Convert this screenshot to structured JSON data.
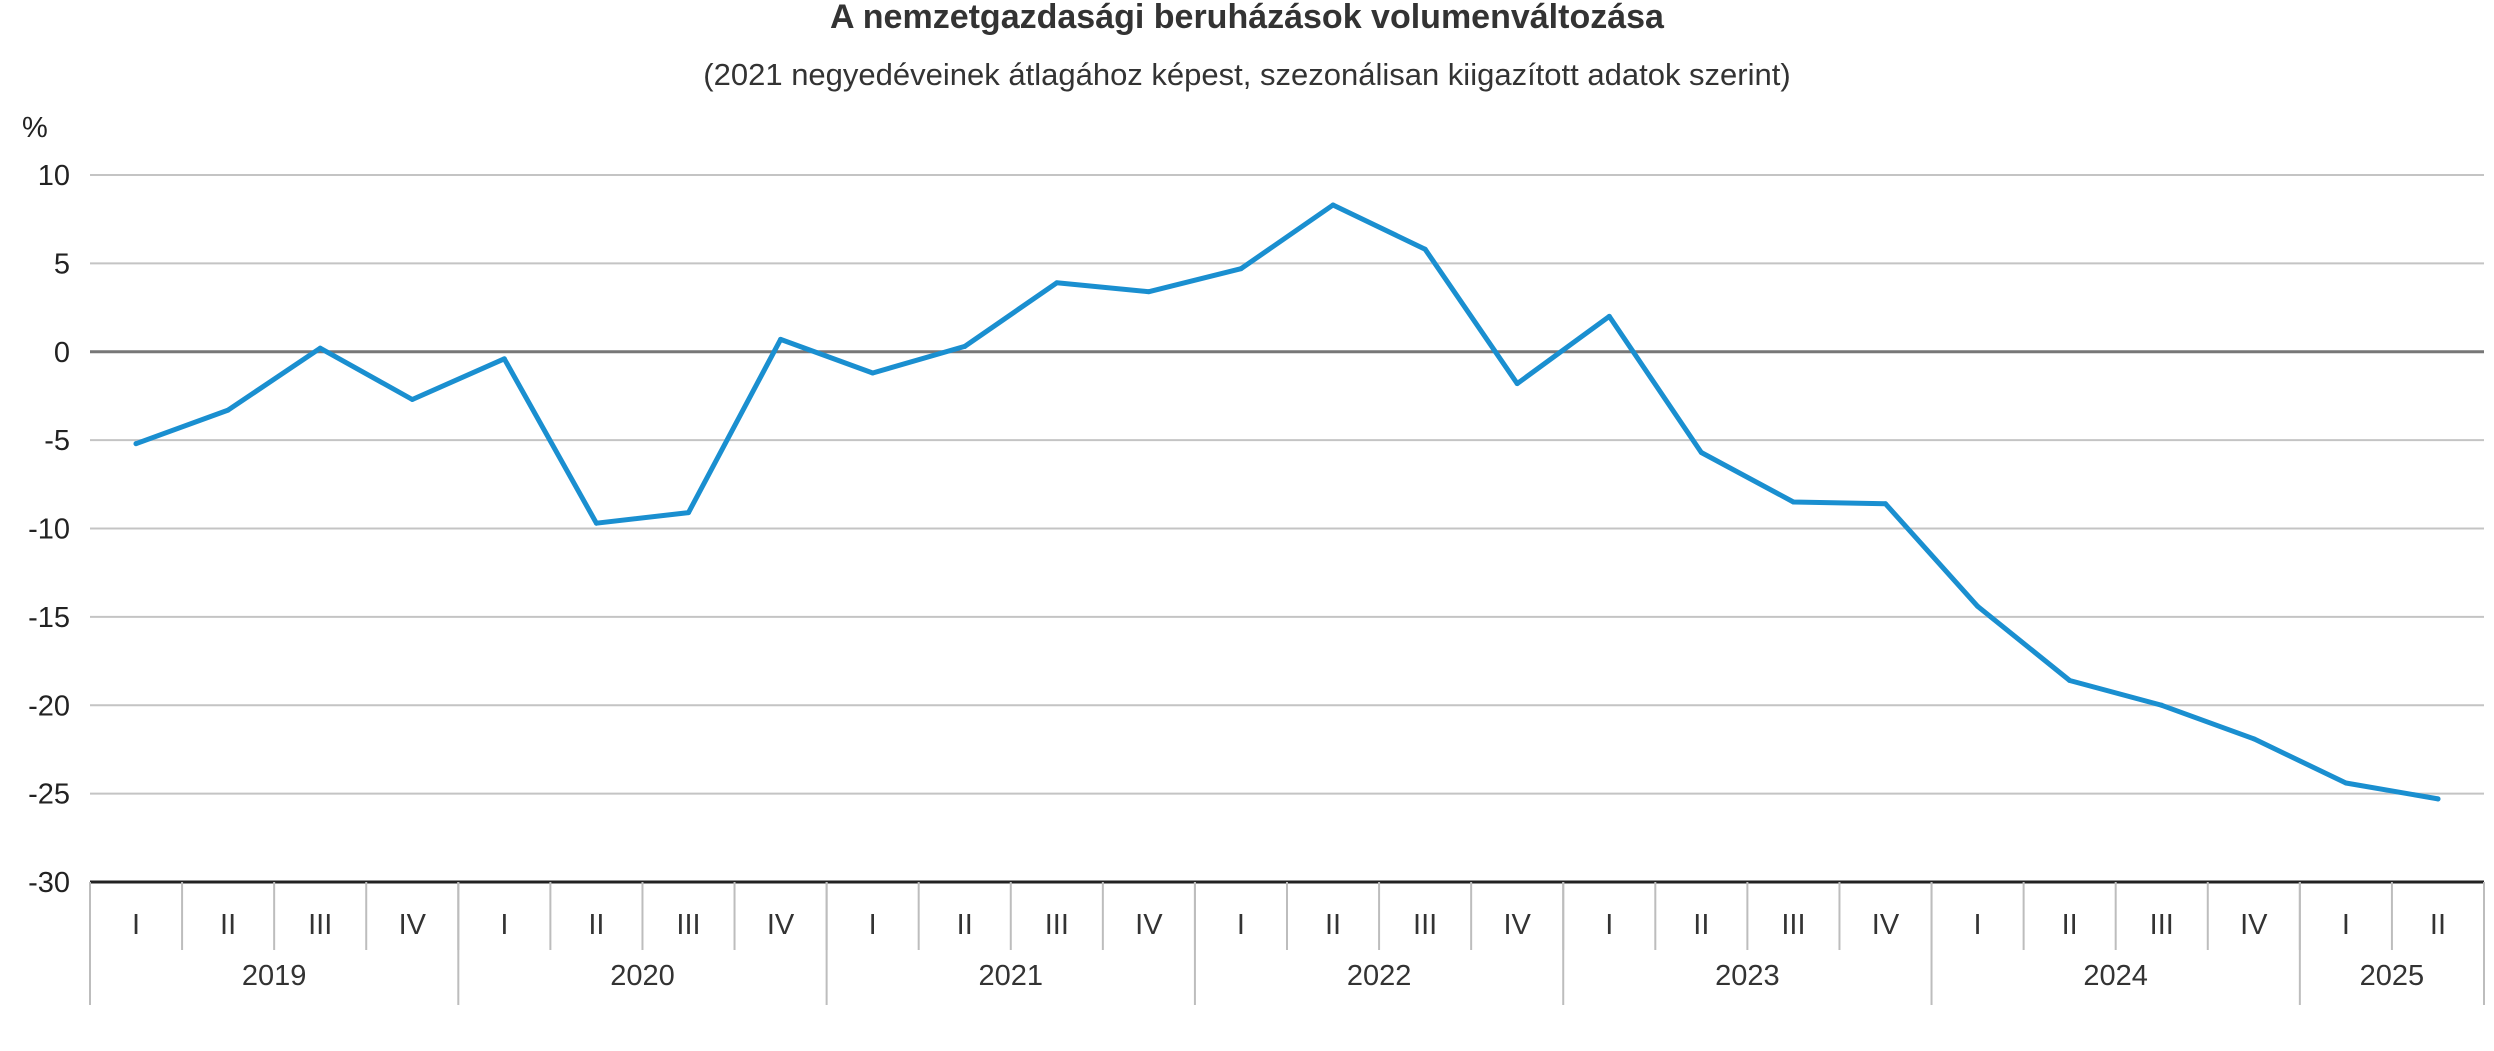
{
  "chart_data": {
    "type": "line",
    "title": "A nemzetgazdasági beruházások volumenváltozása",
    "subtitle": "(2021 negyedéveinek átlagához képest, szezonálisan kiigazított adatok szerint)",
    "ylabel": "%",
    "ylim": [
      -30,
      10
    ],
    "yticks": [
      10,
      5,
      0,
      -5,
      -10,
      -15,
      -20,
      -25,
      -30
    ],
    "ytick_labels": [
      "10",
      "5",
      "0",
      "-5",
      "-10",
      "-15",
      "-20",
      "-25",
      "-30"
    ],
    "years": [
      "2019",
      "2020",
      "2021",
      "2022",
      "2023",
      "2024",
      "2025"
    ],
    "quarters_per_year": [
      4,
      4,
      4,
      4,
      4,
      4,
      2
    ],
    "categories": [
      "I",
      "II",
      "III",
      "IV",
      "I",
      "II",
      "III",
      "IV",
      "I",
      "II",
      "III",
      "IV",
      "I",
      "II",
      "III",
      "IV",
      "I",
      "II",
      "III",
      "IV",
      "I",
      "II",
      "III",
      "IV",
      "I",
      "II"
    ],
    "series": [
      {
        "color": "#1a8fd0",
        "values": [
          -5.2,
          -3.3,
          0.2,
          -2.7,
          -0.4,
          -9.7,
          -9.1,
          0.7,
          -1.2,
          0.3,
          3.9,
          3.4,
          4.7,
          8.3,
          5.8,
          -1.8,
          2.0,
          -5.7,
          -8.5,
          -8.6,
          -14.4,
          -18.6,
          -20.0,
          -21.9,
          -24.4,
          -25.3
        ]
      }
    ],
    "grid": true,
    "zero_line": true,
    "legend": "none"
  }
}
